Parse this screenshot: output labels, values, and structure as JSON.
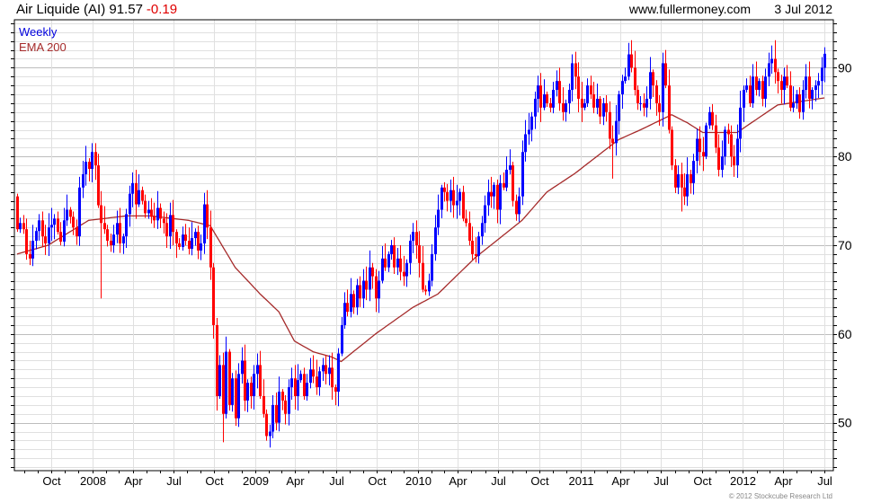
{
  "header": {
    "title": "Air Liquide (AI) 91.57",
    "change": "-0.19",
    "site": "www.fullermoney.com",
    "date": "3 Jul 2012"
  },
  "legend": {
    "series_label": "Weekly",
    "ema_label": "EMA 200"
  },
  "footer": {
    "copyright": "© 2012 Stockcube Research Ltd"
  },
  "colors": {
    "up": "#0000ff",
    "down": "#ff0000",
    "ema": "#a52a2a",
    "change": "#e00000",
    "grid": "#e0e0e0",
    "grid_major": "#bdbdbd"
  },
  "chart_data": {
    "type": "candlestick",
    "title": "Air Liquide (AI) 91.57 -0.19",
    "interval": "weekly",
    "first_week": "2007-07-16",
    "first_open": 75.5,
    "ylim": [
      44.6,
      95.4
    ],
    "yticks": [
      50,
      60,
      70,
      80,
      90
    ],
    "xticks": [
      {
        "label": "Oct",
        "date": "2007-10-01"
      },
      {
        "label": "2008",
        "date": "2008-01-01"
      },
      {
        "label": "Apr",
        "date": "2008-04-01"
      },
      {
        "label": "Jul",
        "date": "2008-07-01"
      },
      {
        "label": "Oct",
        "date": "2008-10-01"
      },
      {
        "label": "2009",
        "date": "2009-01-01"
      },
      {
        "label": "Apr",
        "date": "2009-04-01"
      },
      {
        "label": "Jul",
        "date": "2009-07-01"
      },
      {
        "label": "Oct",
        "date": "2009-10-01"
      },
      {
        "label": "2010",
        "date": "2010-01-01"
      },
      {
        "label": "Apr",
        "date": "2010-04-01"
      },
      {
        "label": "Jul",
        "date": "2010-07-01"
      },
      {
        "label": "Oct",
        "date": "2010-10-01"
      },
      {
        "label": "2011",
        "date": "2011-01-01"
      },
      {
        "label": "Apr",
        "date": "2011-04-01"
      },
      {
        "label": "Jul",
        "date": "2011-07-01"
      },
      {
        "label": "Oct",
        "date": "2011-10-01"
      },
      {
        "label": "2012",
        "date": "2012-01-01"
      },
      {
        "label": "Apr",
        "date": "2012-04-01"
      },
      {
        "label": "Jul",
        "date": "2012-07-01"
      }
    ],
    "close": [
      71.8,
      72.5,
      71.8,
      69.0,
      68.5,
      70.5,
      71.6,
      72.8,
      71.0,
      70.2,
      72.0,
      72.3,
      73.0,
      71.5,
      70.4,
      72.8,
      74.0,
      73.2,
      72.0,
      71.0,
      76.5,
      78.0,
      79.4,
      78.6,
      80.5,
      79.0,
      74.5,
      72.5,
      71.8,
      70.5,
      70.0,
      71.2,
      72.5,
      70.2,
      71.0,
      73.5,
      75.8,
      77.0,
      74.6,
      76.2,
      75.0,
      73.6,
      74.0,
      73.2,
      72.8,
      74.2,
      73.0,
      72.5,
      71.0,
      73.4,
      71.5,
      70.2,
      69.8,
      71.2,
      70.5,
      69.6,
      70.8,
      71.5,
      69.4,
      70.2,
      74.6,
      72.0,
      67.5,
      61.0,
      53.0,
      56.5,
      51.0,
      58.0,
      52.0,
      55.0,
      50.5,
      55.5,
      57.0,
      52.5,
      54.5,
      53.0,
      55.5,
      56.5,
      53.0,
      51.0,
      48.5,
      49.0,
      52.0,
      50.0,
      53.5,
      52.5,
      51.0,
      54.0,
      55.0,
      53.0,
      54.8,
      55.5,
      53.0,
      54.5,
      56.0,
      55.2,
      54.0,
      55.8,
      56.5,
      55.5,
      56.2,
      54.0,
      53.5,
      57.8,
      61.0,
      63.5,
      62.5,
      64.5,
      63.0,
      65.5,
      64.0,
      66.0,
      65.0,
      67.5,
      66.5,
      64.0,
      66.0,
      68.5,
      67.5,
      69.0,
      70.0,
      67.5,
      68.5,
      67.0,
      66.5,
      68.0,
      70.5,
      71.5,
      70.0,
      68.0,
      65.0,
      64.8,
      66.0,
      69.0,
      72.0,
      74.0,
      76.5,
      76.0,
      75.0,
      76.2,
      74.5,
      75.0,
      76.0,
      73.0,
      72.5,
      70.5,
      69.0,
      68.8,
      71.0,
      72.5,
      74.5,
      76.0,
      75.5,
      76.8,
      74.0,
      77.0,
      76.5,
      78.5,
      79.0,
      75.0,
      73.5,
      75.5,
      80.5,
      82.5,
      83.0,
      84.5,
      86.5,
      88.0,
      85.5,
      87.0,
      86.0,
      85.5,
      87.5,
      88.5,
      86.0,
      85.0,
      86.0,
      87.5,
      90.5,
      89.0,
      86.5,
      85.5,
      86.0,
      88.0,
      87.0,
      85.5,
      86.5,
      84.5,
      86.0,
      85.0,
      82.0,
      81.5,
      84.0,
      87.0,
      88.5,
      89.0,
      91.5,
      90.0,
      87.5,
      86.0,
      86.0,
      85.5,
      86.5,
      89.5,
      88.0,
      86.0,
      85.0,
      90.5,
      88.0,
      83.0,
      79.0,
      76.5,
      78.0,
      76.5,
      75.5,
      78.0,
      77.0,
      79.5,
      82.0,
      80.5,
      80.0,
      83.5,
      85.0,
      83.5,
      81.0,
      78.5,
      80.0,
      83.0,
      82.5,
      80.0,
      79.0,
      82.0,
      85.5,
      87.5,
      88.0,
      86.0,
      89.0,
      87.5,
      88.5,
      86.5,
      89.0,
      90.5,
      91.0,
      89.5,
      88.5,
      87.5,
      89.0,
      88.0,
      85.5,
      86.0,
      87.0,
      85.0,
      87.5,
      89.0,
      86.5,
      87.5,
      88.0,
      88.5,
      90.0,
      91.57
    ],
    "low_overrides": [
      {
        "week_index": 27,
        "low": 64.0
      },
      {
        "week_index": 66,
        "low": 47.8
      },
      {
        "week_index": 81,
        "low": 47.2
      },
      {
        "week_index": 191,
        "low": 77.5
      },
      {
        "week_index": 213,
        "low": 73.8
      }
    ],
    "high_overrides": [
      {
        "week_index": 24,
        "low": null,
        "high": 81.5
      },
      {
        "week_index": 243,
        "high": 93.1
      },
      {
        "week_index": 259,
        "high": 92.3
      }
    ],
    "ema_200": [
      {
        "week_index": 0,
        "value": 69.0
      },
      {
        "week_index": 10,
        "value": 70.0
      },
      {
        "week_index": 23,
        "value": 72.8
      },
      {
        "week_index": 35,
        "value": 73.3
      },
      {
        "week_index": 43,
        "value": 73.3
      },
      {
        "week_index": 55,
        "value": 72.8
      },
      {
        "week_index": 62,
        "value": 72.2
      },
      {
        "week_index": 70,
        "value": 67.5
      },
      {
        "week_index": 78,
        "value": 64.5
      },
      {
        "week_index": 84,
        "value": 62.5
      },
      {
        "week_index": 89,
        "value": 59.2
      },
      {
        "week_index": 95,
        "value": 58.0
      },
      {
        "week_index": 101,
        "value": 57.4
      },
      {
        "week_index": 104,
        "value": 56.9
      },
      {
        "week_index": 115,
        "value": 60.0
      },
      {
        "week_index": 127,
        "value": 63.0
      },
      {
        "week_index": 135,
        "value": 64.5
      },
      {
        "week_index": 147,
        "value": 68.6
      },
      {
        "week_index": 162,
        "value": 72.8
      },
      {
        "week_index": 170,
        "value": 76.0
      },
      {
        "week_index": 179,
        "value": 78.1
      },
      {
        "week_index": 193,
        "value": 81.9
      },
      {
        "week_index": 200,
        "value": 83.0
      },
      {
        "week_index": 210,
        "value": 84.7
      },
      {
        "week_index": 215,
        "value": 83.8
      },
      {
        "week_index": 220,
        "value": 82.7
      },
      {
        "week_index": 231,
        "value": 82.7
      },
      {
        "week_index": 244,
        "value": 85.8
      },
      {
        "week_index": 259,
        "value": 86.6
      }
    ]
  }
}
